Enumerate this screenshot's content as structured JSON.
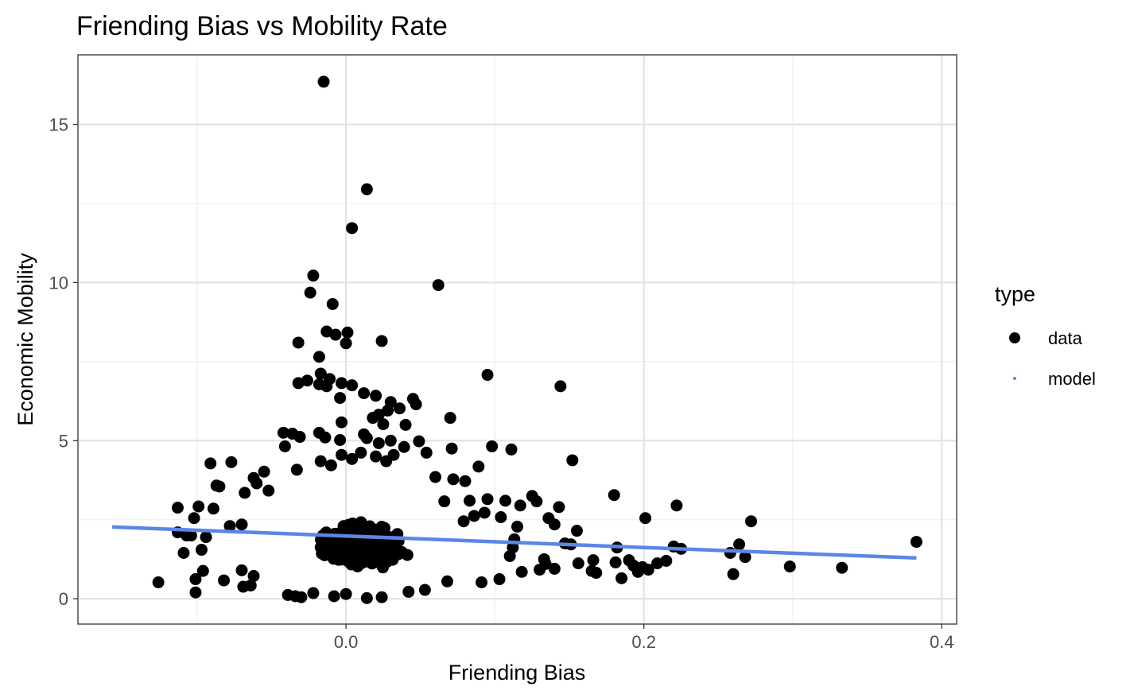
{
  "chart_data": {
    "type": "scatter",
    "title": "Friending Bias vs Mobility Rate",
    "xlabel": "Friending Bias",
    "ylabel": "Economic Mobility",
    "xlim": [
      -0.18,
      0.41
    ],
    "ylim": [
      -0.8,
      17.2
    ],
    "xticks": [
      0.0,
      0.2,
      0.4
    ],
    "xtick_labels": [
      "0.0",
      "0.2",
      "0.4"
    ],
    "xminor": [
      -0.1,
      0.1,
      0.3
    ],
    "yticks": [
      0,
      5,
      10,
      15
    ],
    "ytick_labels": [
      "0",
      "5",
      "10",
      "15"
    ],
    "yminor": [
      2.5,
      7.5,
      12.5
    ],
    "grid": true,
    "legend": {
      "title": "type",
      "position": "right",
      "entries": [
        {
          "label": "data",
          "color": "#000000",
          "marker": "large-dot"
        },
        {
          "label": "model",
          "color": "#5a86e8",
          "marker": "small-dot"
        }
      ]
    },
    "series": [
      {
        "name": "data",
        "kind": "points",
        "color": "#000000",
        "points": [
          [
            -0.015,
            16.35
          ],
          [
            0.014,
            12.95
          ],
          [
            0.004,
            11.72
          ],
          [
            0.062,
            9.92
          ],
          [
            -0.022,
            10.22
          ],
          [
            -0.024,
            9.68
          ],
          [
            -0.009,
            9.32
          ],
          [
            -0.013,
            8.45
          ],
          [
            0.001,
            8.42
          ],
          [
            -0.007,
            8.35
          ],
          [
            0.024,
            8.15
          ],
          [
            -0.032,
            8.1
          ],
          [
            0.0,
            8.08
          ],
          [
            -0.018,
            7.65
          ],
          [
            0.095,
            7.08
          ],
          [
            0.144,
            6.72
          ],
          [
            -0.017,
            7.12
          ],
          [
            -0.011,
            6.95
          ],
          [
            -0.026,
            6.9
          ],
          [
            -0.032,
            6.82
          ],
          [
            -0.018,
            6.78
          ],
          [
            -0.013,
            6.72
          ],
          [
            -0.003,
            6.82
          ],
          [
            0.004,
            6.75
          ],
          [
            0.012,
            6.5
          ],
          [
            0.02,
            6.42
          ],
          [
            0.03,
            6.22
          ],
          [
            -0.004,
            6.35
          ],
          [
            0.045,
            6.32
          ],
          [
            0.047,
            6.15
          ],
          [
            0.036,
            6.02
          ],
          [
            0.028,
            5.95
          ],
          [
            0.022,
            5.82
          ],
          [
            0.018,
            5.72
          ],
          [
            0.07,
            5.72
          ],
          [
            0.025,
            5.52
          ],
          [
            -0.003,
            5.58
          ],
          [
            0.04,
            5.5
          ],
          [
            -0.042,
            5.25
          ],
          [
            -0.036,
            5.22
          ],
          [
            -0.018,
            5.25
          ],
          [
            -0.014,
            5.1
          ],
          [
            -0.004,
            5.02
          ],
          [
            0.012,
            5.2
          ],
          [
            0.014,
            5.08
          ],
          [
            0.022,
            4.92
          ],
          [
            0.03,
            5.0
          ],
          [
            0.049,
            4.98
          ],
          [
            0.039,
            4.8
          ],
          [
            0.098,
            4.82
          ],
          [
            0.111,
            4.72
          ],
          [
            0.071,
            4.75
          ],
          [
            -0.031,
            5.12
          ],
          [
            -0.041,
            4.82
          ],
          [
            0.054,
            4.62
          ],
          [
            0.004,
            4.42
          ],
          [
            0.01,
            4.62
          ],
          [
            0.02,
            4.5
          ],
          [
            0.032,
            4.55
          ],
          [
            0.027,
            4.35
          ],
          [
            0.152,
            4.38
          ],
          [
            0.089,
            4.18
          ],
          [
            -0.017,
            4.35
          ],
          [
            -0.01,
            4.22
          ],
          [
            -0.003,
            4.55
          ],
          [
            -0.091,
            4.28
          ],
          [
            -0.077,
            4.32
          ],
          [
            -0.033,
            4.08
          ],
          [
            -0.055,
            4.02
          ],
          [
            0.06,
            3.85
          ],
          [
            0.072,
            3.78
          ],
          [
            0.08,
            3.72
          ],
          [
            -0.087,
            3.58
          ],
          [
            -0.085,
            3.55
          ],
          [
            -0.062,
            3.82
          ],
          [
            -0.06,
            3.65
          ],
          [
            -0.052,
            3.42
          ],
          [
            -0.068,
            3.35
          ],
          [
            0.125,
            3.25
          ],
          [
            0.18,
            3.28
          ],
          [
            0.128,
            3.08
          ],
          [
            0.066,
            3.08
          ],
          [
            0.083,
            3.1
          ],
          [
            0.095,
            3.15
          ],
          [
            0.107,
            3.1
          ],
          [
            -0.113,
            2.88
          ],
          [
            -0.099,
            2.92
          ],
          [
            -0.089,
            2.85
          ],
          [
            0.117,
            2.95
          ],
          [
            0.136,
            2.55
          ],
          [
            0.14,
            2.35
          ],
          [
            0.143,
            2.9
          ],
          [
            0.201,
            2.55
          ],
          [
            0.222,
            2.95
          ],
          [
            0.272,
            2.45
          ],
          [
            -0.102,
            2.55
          ],
          [
            -0.104,
            2.0
          ],
          [
            -0.113,
            2.1
          ],
          [
            -0.078,
            2.3
          ],
          [
            -0.07,
            2.35
          ],
          [
            -0.107,
            2.0
          ],
          [
            -0.094,
            1.95
          ],
          [
            -0.097,
            1.55
          ],
          [
            -0.109,
            1.45
          ],
          [
            -0.126,
            0.52
          ],
          [
            -0.096,
            0.88
          ],
          [
            -0.101,
            0.62
          ],
          [
            -0.101,
            0.2
          ],
          [
            -0.082,
            0.58
          ],
          [
            -0.069,
            0.38
          ],
          [
            -0.064,
            0.42
          ],
          [
            -0.07,
            0.9
          ],
          [
            -0.062,
            0.72
          ],
          [
            0.155,
            2.15
          ],
          [
            0.156,
            1.12
          ],
          [
            0.166,
            1.22
          ],
          [
            0.165,
            0.88
          ],
          [
            0.168,
            0.82
          ],
          [
            0.182,
            1.62
          ],
          [
            0.181,
            1.15
          ],
          [
            0.185,
            0.65
          ],
          [
            0.19,
            1.22
          ],
          [
            0.193,
            1.05
          ],
          [
            0.196,
            0.85
          ],
          [
            0.199,
            1.0
          ],
          [
            0.203,
            0.92
          ],
          [
            0.209,
            1.12
          ],
          [
            0.215,
            1.2
          ],
          [
            0.22,
            1.65
          ],
          [
            0.225,
            1.58
          ],
          [
            0.258,
            1.45
          ],
          [
            0.26,
            0.78
          ],
          [
            0.264,
            1.72
          ],
          [
            0.268,
            1.32
          ],
          [
            0.298,
            1.02
          ],
          [
            0.333,
            0.98
          ],
          [
            0.383,
            1.8
          ],
          [
            0.147,
            1.75
          ],
          [
            0.151,
            1.72
          ],
          [
            0.134,
            1.1
          ],
          [
            0.13,
            0.92
          ],
          [
            0.133,
            1.25
          ],
          [
            0.14,
            0.95
          ],
          [
            0.014,
            0.02
          ],
          [
            0.024,
            0.05
          ],
          [
            0.042,
            0.22
          ],
          [
            0.053,
            0.28
          ],
          [
            -0.03,
            0.05
          ],
          [
            -0.034,
            0.08
          ],
          [
            -0.039,
            0.12
          ],
          [
            -0.022,
            0.18
          ],
          [
            -0.008,
            0.08
          ],
          [
            0.0,
            0.15
          ],
          [
            0.068,
            0.55
          ],
          [
            0.091,
            0.52
          ],
          [
            0.103,
            0.62
          ],
          [
            0.118,
            0.85
          ],
          [
            0.11,
            1.35
          ],
          [
            0.112,
            1.62
          ],
          [
            0.113,
            1.88
          ],
          [
            0.115,
            2.28
          ],
          [
            0.104,
            2.58
          ],
          [
            0.093,
            2.72
          ],
          [
            0.086,
            2.62
          ],
          [
            0.079,
            2.45
          ]
        ],
        "cloud": {
          "description": "dense overlapping cluster",
          "x_range": [
            -0.06,
            0.11
          ],
          "y_range": [
            0.3,
            3.6
          ],
          "center": [
            0.01,
            1.7
          ]
        }
      },
      {
        "name": "model",
        "kind": "line",
        "color": "#5a86e8",
        "x": [
          -0.157,
          0.383
        ],
        "y": [
          2.27,
          1.29
        ]
      }
    ]
  }
}
